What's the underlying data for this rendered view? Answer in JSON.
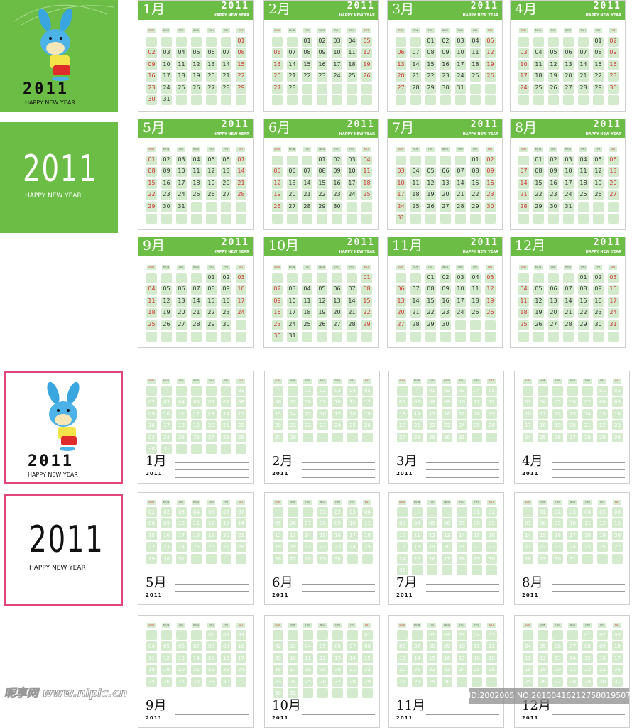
{
  "year": "2011",
  "greeting": "HAPPY NEW YEAR",
  "weekdays": [
    "SUN",
    "MON",
    "TUE",
    "WED",
    "THU",
    "FRI",
    "SAT"
  ],
  "months": [
    {
      "label": "1月",
      "first_weekday": 6,
      "days": 31
    },
    {
      "label": "2月",
      "first_weekday": 2,
      "days": 28
    },
    {
      "label": "3月",
      "first_weekday": 2,
      "days": 31
    },
    {
      "label": "4月",
      "first_weekday": 5,
      "days": 30
    },
    {
      "label": "5月",
      "first_weekday": 0,
      "days": 31
    },
    {
      "label": "6月",
      "first_weekday": 3,
      "days": 30
    },
    {
      "label": "7月",
      "first_weekday": 5,
      "days": 31
    },
    {
      "label": "8月",
      "first_weekday": 1,
      "days": 31
    },
    {
      "label": "9月",
      "first_weekday": 4,
      "days": 30
    },
    {
      "label": "10月",
      "first_weekday": 6,
      "days": 31
    },
    {
      "label": "11月",
      "first_weekday": 2,
      "days": 30
    },
    {
      "label": "12月",
      "first_weekday": 4,
      "days": 31
    }
  ],
  "colors": {
    "green": "#6cbd45",
    "cell": "#d3ebcc",
    "weekend": "#d0343a",
    "frame": "#e0457b"
  },
  "watermark": {
    "logo": "昵享网 www.nipic.cn",
    "id": "ID:2002005 NO:20100416212758019507"
  }
}
